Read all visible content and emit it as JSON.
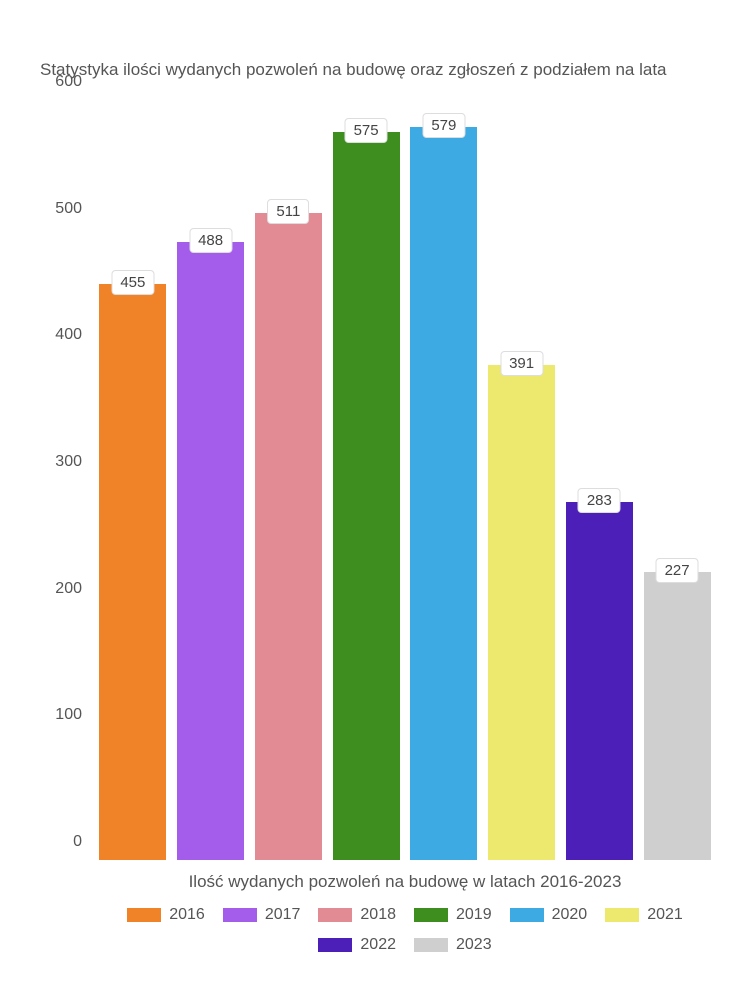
{
  "chart": {
    "type": "bar",
    "title": "Statystyka ilości wydanych pozwoleń na budowę oraz zgłoszeń z podziałem na lata",
    "x_caption": "Ilość wydanych pozwoleń na budowę w latach 2016-2023",
    "ylim": [
      0,
      600
    ],
    "ytick_step": 100,
    "yticks": [
      0,
      100,
      200,
      300,
      400,
      500,
      600
    ],
    "background_color": "#ffffff",
    "text_color": "#555555",
    "label_bg": "#ffffff",
    "label_border": "#dddddd",
    "title_fontsize": 17,
    "axis_fontsize": 16,
    "label_fontsize": 15,
    "legend_fontsize": 16,
    "bar_width": 0.86,
    "bars": [
      {
        "year": "2016",
        "value": 455,
        "color": "#f08228"
      },
      {
        "year": "2017",
        "value": 488,
        "color": "#a45deb"
      },
      {
        "year": "2018",
        "value": 511,
        "color": "#e28b94"
      },
      {
        "year": "2019",
        "value": 575,
        "color": "#3e8e1f"
      },
      {
        "year": "2020",
        "value": 579,
        "color": "#3daae3"
      },
      {
        "year": "2021",
        "value": 391,
        "color": "#ede96f"
      },
      {
        "year": "2022",
        "value": 283,
        "color": "#4b1fb8"
      },
      {
        "year": "2023",
        "value": 227,
        "color": "#cfcfcf"
      }
    ]
  }
}
